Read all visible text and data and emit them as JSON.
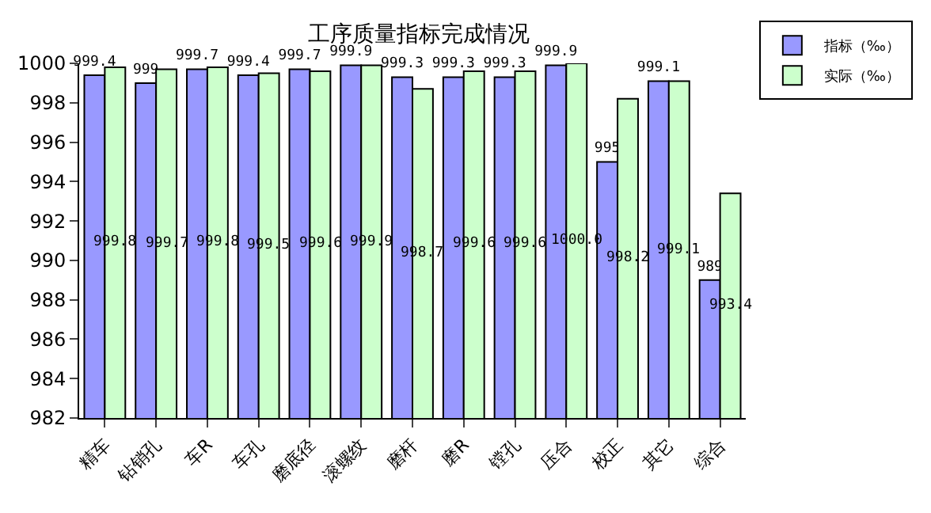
{
  "chart_data": {
    "type": "bar",
    "title": "工序质量指标完成情况",
    "categories": [
      "精车",
      "钻销孔",
      "车R",
      "车孔",
      "磨底径",
      "滚螺纹",
      "磨杆",
      "磨R",
      "镗孔",
      "压合",
      "校正",
      "其它",
      "综合"
    ],
    "series": [
      {
        "name": "指标（‰）",
        "color": "#9999ff",
        "values": [
          999.4,
          999,
          999.7,
          999.4,
          999.7,
          999.9,
          999.3,
          999.3,
          999.3,
          999.9,
          995,
          999.1,
          989
        ],
        "value_labels": [
          "999.4",
          "999",
          "999.7",
          "999.4",
          "999.7",
          "999.9",
          "999.3",
          "999.3",
          "999.3",
          "999.9",
          "995",
          "999.1",
          "989"
        ]
      },
      {
        "name": "实际（‰）",
        "color": "#ccffcc",
        "values": [
          999.8,
          999.7,
          999.8,
          999.5,
          999.6,
          999.9,
          998.7,
          999.6,
          999.6,
          1000.0,
          998.2,
          999.1,
          993.4
        ],
        "value_labels": [
          "999.8",
          "999.7",
          "999.8",
          "999.5",
          "999.6",
          "999.9",
          "998.7",
          "999.6",
          "999.6",
          "1000.0",
          "998.2",
          "999.1",
          "993.4"
        ]
      }
    ],
    "ylim": [
      982,
      1000
    ],
    "yticks": [
      982,
      984,
      986,
      988,
      990,
      992,
      994,
      996,
      998,
      1000
    ],
    "legend": "top right"
  }
}
